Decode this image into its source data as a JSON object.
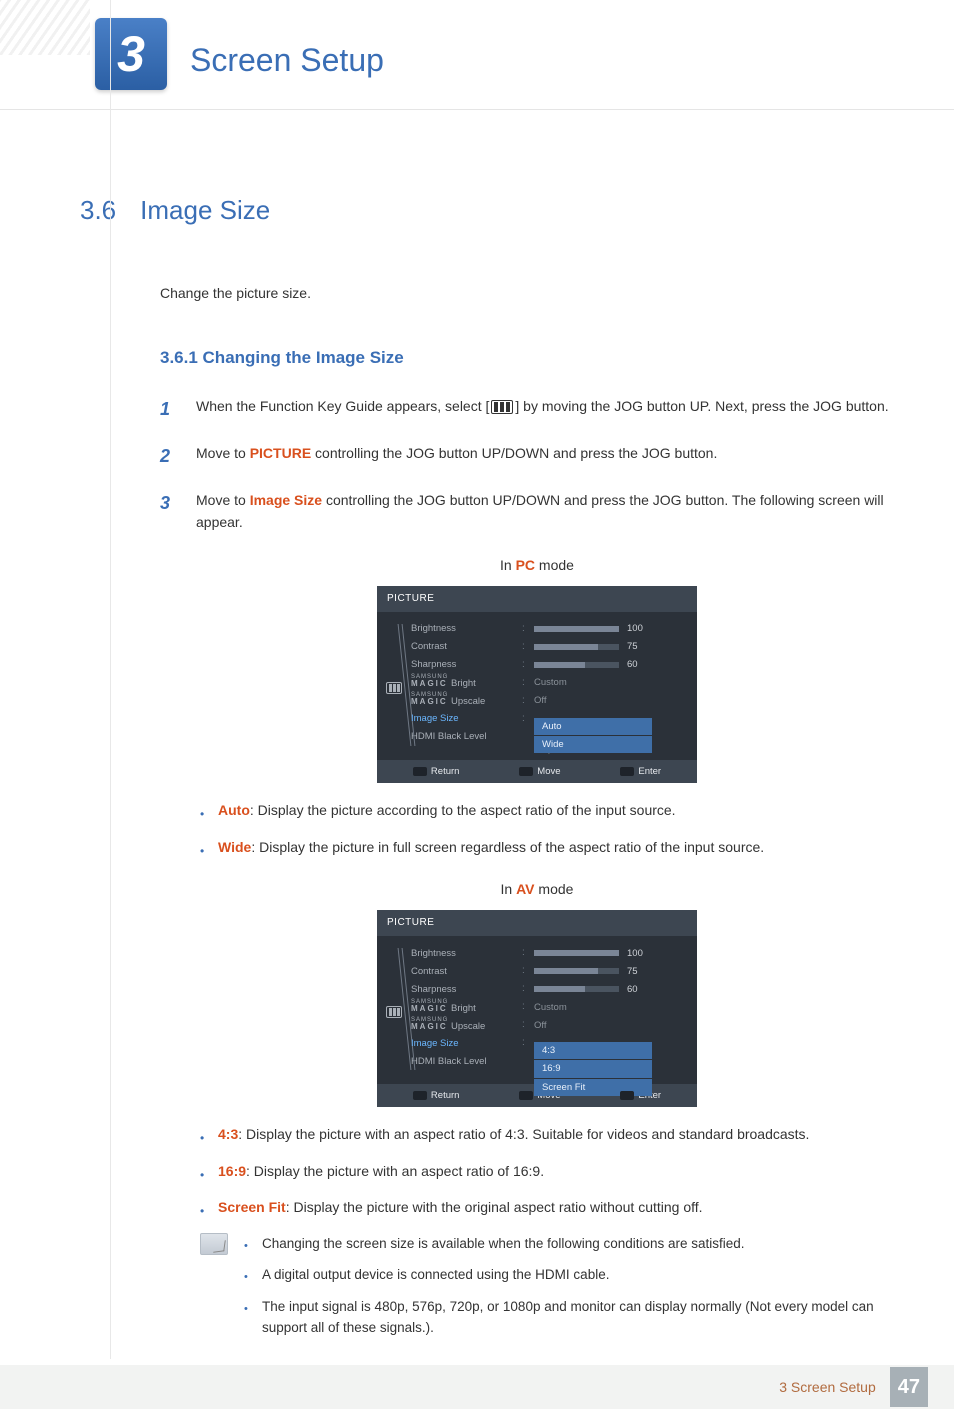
{
  "chapter": {
    "number": "3",
    "title": "Screen Setup"
  },
  "section": {
    "number": "3.6",
    "title": "Image Size",
    "intro": "Change the picture size."
  },
  "subsection": {
    "number_title": "3.6.1  Changing the Image Size"
  },
  "steps": [
    {
      "n": "1",
      "pre": "When the Function Key Guide appears, select [",
      "post": "] by moving the JOG button UP. Next, press the JOG button."
    },
    {
      "n": "2",
      "a": "Move to ",
      "b": "PICTURE",
      "c": " controlling the JOG button UP/DOWN and press the JOG button."
    },
    {
      "n": "3",
      "a": "Move to ",
      "b": "Image Size",
      "c": " controlling the JOG button UP/DOWN and press the JOG button. The following screen will appear."
    }
  ],
  "modes": {
    "pc": {
      "pre": "In ",
      "b": "PC",
      "post": " mode"
    },
    "av": {
      "pre": "In ",
      "b": "AV",
      "post": " mode"
    }
  },
  "osd": {
    "header": "PICTURE",
    "brightness": {
      "label": "Brightness",
      "value": 100,
      "pct": 100
    },
    "contrast": {
      "label": "Contrast",
      "value": 75,
      "pct": 75
    },
    "sharpness": {
      "label": "Sharpness",
      "value": 60,
      "pct": 60
    },
    "magic_bright": {
      "label_small": "SAMSUNG",
      "label_big": "MAGIC",
      "suffix": " Bright",
      "value": "Custom"
    },
    "magic_upscale": {
      "label_small": "SAMSUNG",
      "label_big": "MAGIC",
      "suffix": " Upscale",
      "value": "Off"
    },
    "image_size_label": "Image Size",
    "black_level_label": "HDMI Black Level",
    "pc_options": [
      "Auto",
      "Wide"
    ],
    "av_options": [
      "4:3",
      "16:9",
      "Screen Fit"
    ],
    "foot": {
      "return": "Return",
      "move": "Move",
      "enter": "Enter"
    },
    "colors": {
      "bg": "#2b3139",
      "header_bg": "#3d4651",
      "text_dim": "#aab0b8",
      "bar_bg": "#4a5460",
      "bar_fill": "#7a8596",
      "sel_text": "#6bb7ff",
      "drop_bg": "#3f6fa8",
      "drop_text": "#e8f0fb"
    }
  },
  "pc_bullets": [
    {
      "b": "Auto",
      "t": ": Display the picture according to the aspect ratio of the input source."
    },
    {
      "b": "Wide",
      "t": ": Display the picture in full screen regardless of the aspect ratio of the input source."
    }
  ],
  "av_bullets": [
    {
      "b": "4:3",
      "t": ": Display the picture with an aspect ratio of 4:3. Suitable for videos and standard broadcasts."
    },
    {
      "b": "16:9",
      "t": ": Display the picture with an aspect ratio of 16:9."
    },
    {
      "b": "Screen Fit",
      "t": ": Display the picture with the original aspect ratio without cutting off."
    }
  ],
  "notes": [
    "Changing the screen size is available when the following conditions are satisfied.",
    "A digital output device is connected using the HDMI cable.",
    "The input signal is 480p, 576p, 720p, or 1080p and monitor can display normally (Not every model can support all of these signals.)."
  ],
  "footer": {
    "label": "3 Screen Setup",
    "page": "47"
  },
  "colors": {
    "brand": "#3a6eb5",
    "accent": "#d9501e",
    "footer_bg": "#f2f3f2",
    "pagenum_bg": "#a7b0b6"
  }
}
